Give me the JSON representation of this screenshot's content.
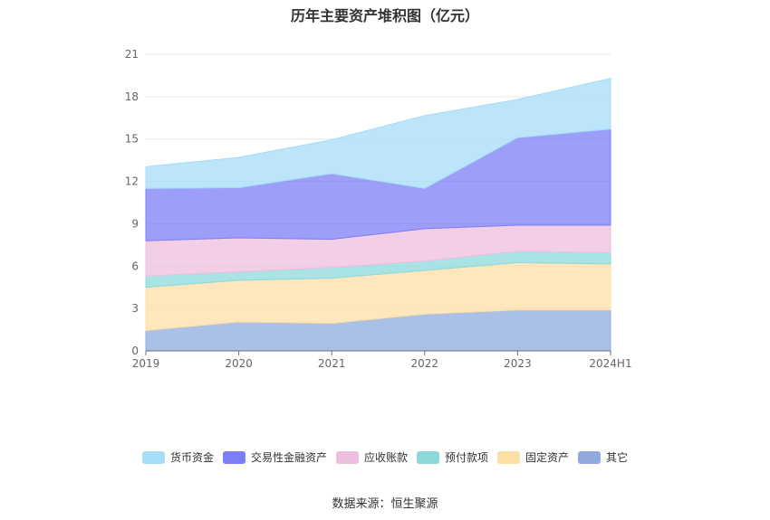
{
  "chart_data": {
    "type": "area",
    "stacked": true,
    "title": "历年主要资产堆积图（亿元）",
    "categories": [
      "2019",
      "2020",
      "2021",
      "2022",
      "2023",
      "2024H1"
    ],
    "ylim": [
      0,
      21
    ],
    "yticks": [
      0,
      3,
      6,
      9,
      12,
      15,
      18,
      21
    ],
    "grid": true,
    "legend_position": "bottom",
    "series": [
      {
        "name": "其它",
        "color": "#8fabdd",
        "values": [
          1.45,
          2.05,
          1.95,
          2.6,
          2.9,
          2.9
        ]
      },
      {
        "name": "固定资产",
        "color": "#fddfa6",
        "values": [
          3.05,
          2.95,
          3.2,
          3.1,
          3.35,
          3.25
        ]
      },
      {
        "name": "预付款项",
        "color": "#8cd9d9",
        "values": [
          0.8,
          0.6,
          0.75,
          0.65,
          0.8,
          0.8
        ]
      },
      {
        "name": "应收账款",
        "color": "#edbfdf",
        "values": [
          2.5,
          2.4,
          2.0,
          2.3,
          1.85,
          1.95
        ]
      },
      {
        "name": "交易性金融资产",
        "color": "#7b7ef5",
        "values": [
          3.7,
          3.55,
          4.65,
          2.85,
          6.2,
          6.8
        ]
      },
      {
        "name": "货币资金",
        "color": "#a6dcf8",
        "values": [
          1.55,
          2.15,
          2.4,
          5.15,
          2.7,
          3.6
        ]
      }
    ]
  },
  "source_text": "数据来源：恒生聚源"
}
